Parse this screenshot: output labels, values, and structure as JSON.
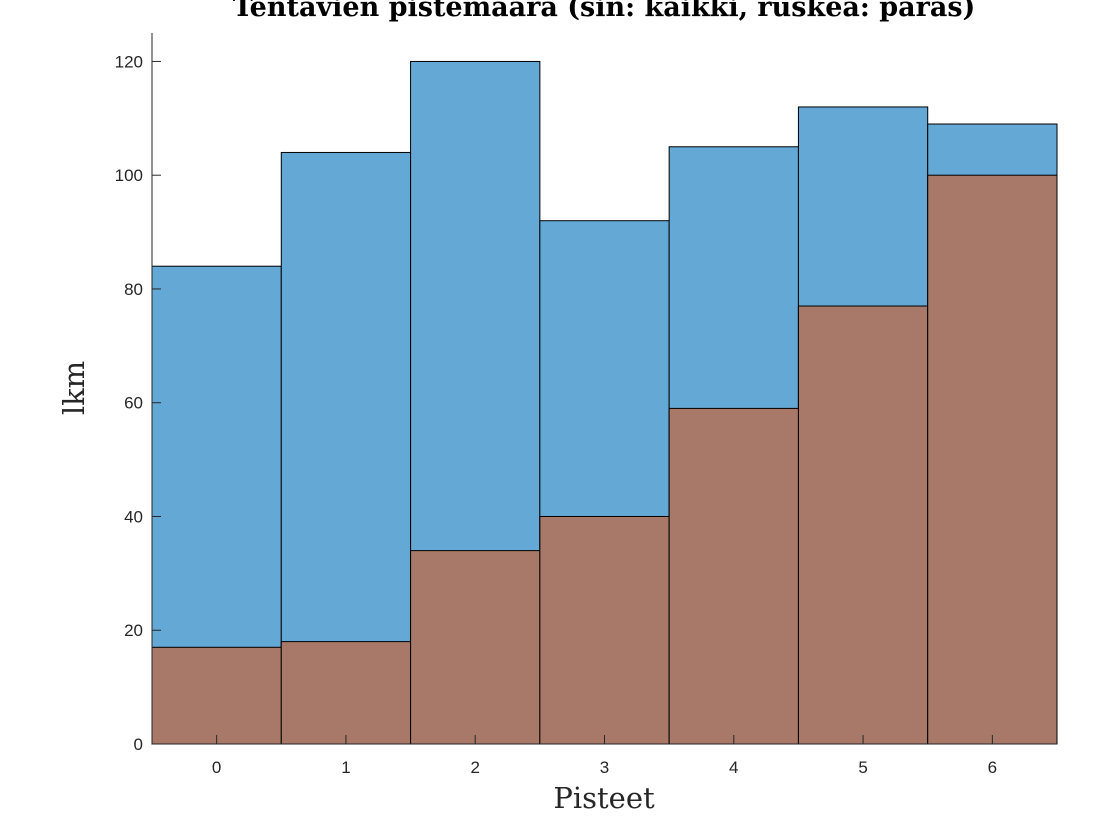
{
  "chart_data": {
    "type": "bar",
    "title": "Tentavien pistemäärä (sin: kaikki, ruskea: paras)",
    "xlabel": "Pisteet",
    "ylabel": "lkm",
    "categories": [
      "0",
      "1",
      "2",
      "3",
      "4",
      "5",
      "6"
    ],
    "series": [
      {
        "values": [
          84,
          104,
          120,
          92,
          105,
          112,
          109
        ],
        "color": "#64a8d6"
      },
      {
        "values": [
          17,
          18,
          34,
          40,
          59,
          77,
          100
        ],
        "color": "#a87868"
      }
    ],
    "overlay": true,
    "ylim": [
      0,
      125
    ],
    "yticks": [
      0,
      20,
      40,
      60,
      80,
      100,
      120
    ],
    "grid": false,
    "legend": "none"
  }
}
